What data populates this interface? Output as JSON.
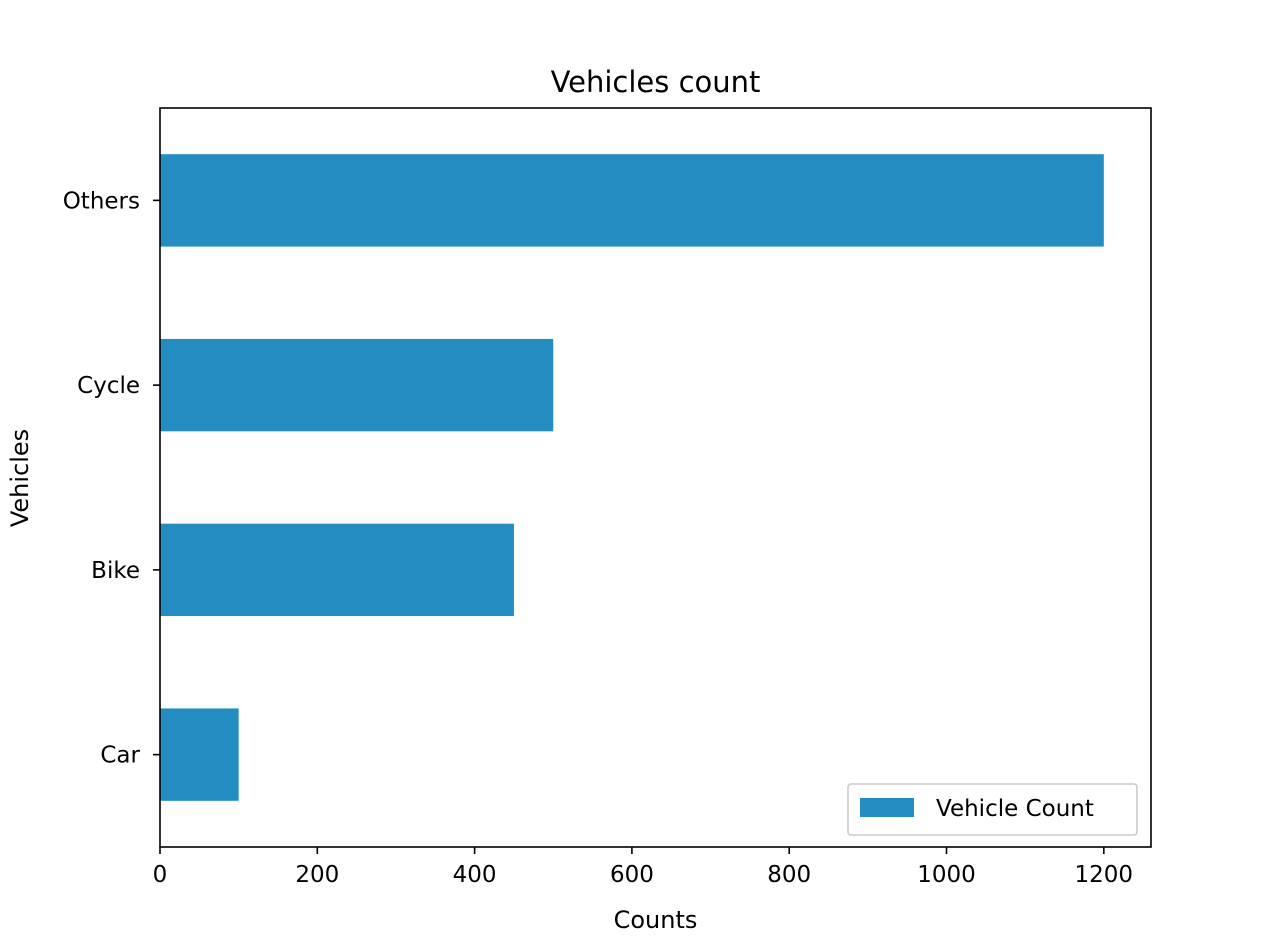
{
  "chart_data": {
    "type": "bar",
    "orientation": "horizontal",
    "title": "Vehicles count",
    "xlabel": "Counts",
    "ylabel": "Vehicles",
    "categories": [
      "Car",
      "Bike",
      "Cycle",
      "Others"
    ],
    "series": [
      {
        "name": "Vehicle Count",
        "values": [
          100,
          450,
          500,
          1200
        ],
        "color": "#238dc1"
      }
    ],
    "xlim": [
      0,
      1260
    ],
    "xticks": [
      0,
      200,
      400,
      600,
      800,
      1000,
      1200
    ],
    "grid": false,
    "legend_position": "lower-right"
  }
}
